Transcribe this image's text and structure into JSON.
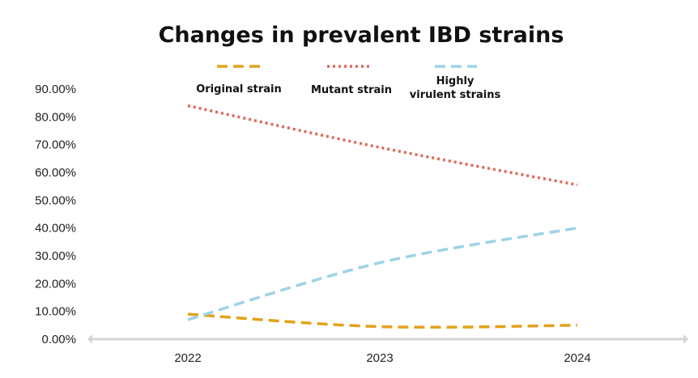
{
  "chart_data": {
    "type": "line",
    "title": "Changes in prevalent IBD strains",
    "xlabel": "",
    "ylabel": "",
    "categories": [
      "2022",
      "2023",
      "2024"
    ],
    "ylim": [
      0,
      90
    ],
    "yticks": [
      "0.00%",
      "10.00%",
      "20.00%",
      "30.00%",
      "40.00%",
      "50.00%",
      "60.00%",
      "70.00%",
      "80.00%",
      "90.00%"
    ],
    "series": [
      {
        "name": "Original strain",
        "legend_label": "Original strain",
        "color": "#E3A21A",
        "dash": "dashed",
        "values": [
          9,
          4.5,
          5
        ]
      },
      {
        "name": "Mutant strain",
        "legend_label": "Mutant strain",
        "color": "#D9695A",
        "dash": "dotted",
        "values": [
          84,
          69,
          55.5
        ]
      },
      {
        "name": "Highly virulent strains",
        "legend_label": [
          "Highly",
          "virulent strains"
        ],
        "color": "#9DD3E6",
        "dash": "dashed",
        "values": [
          7,
          27.5,
          40
        ]
      }
    ],
    "legend_position": "top",
    "grid": false
  }
}
